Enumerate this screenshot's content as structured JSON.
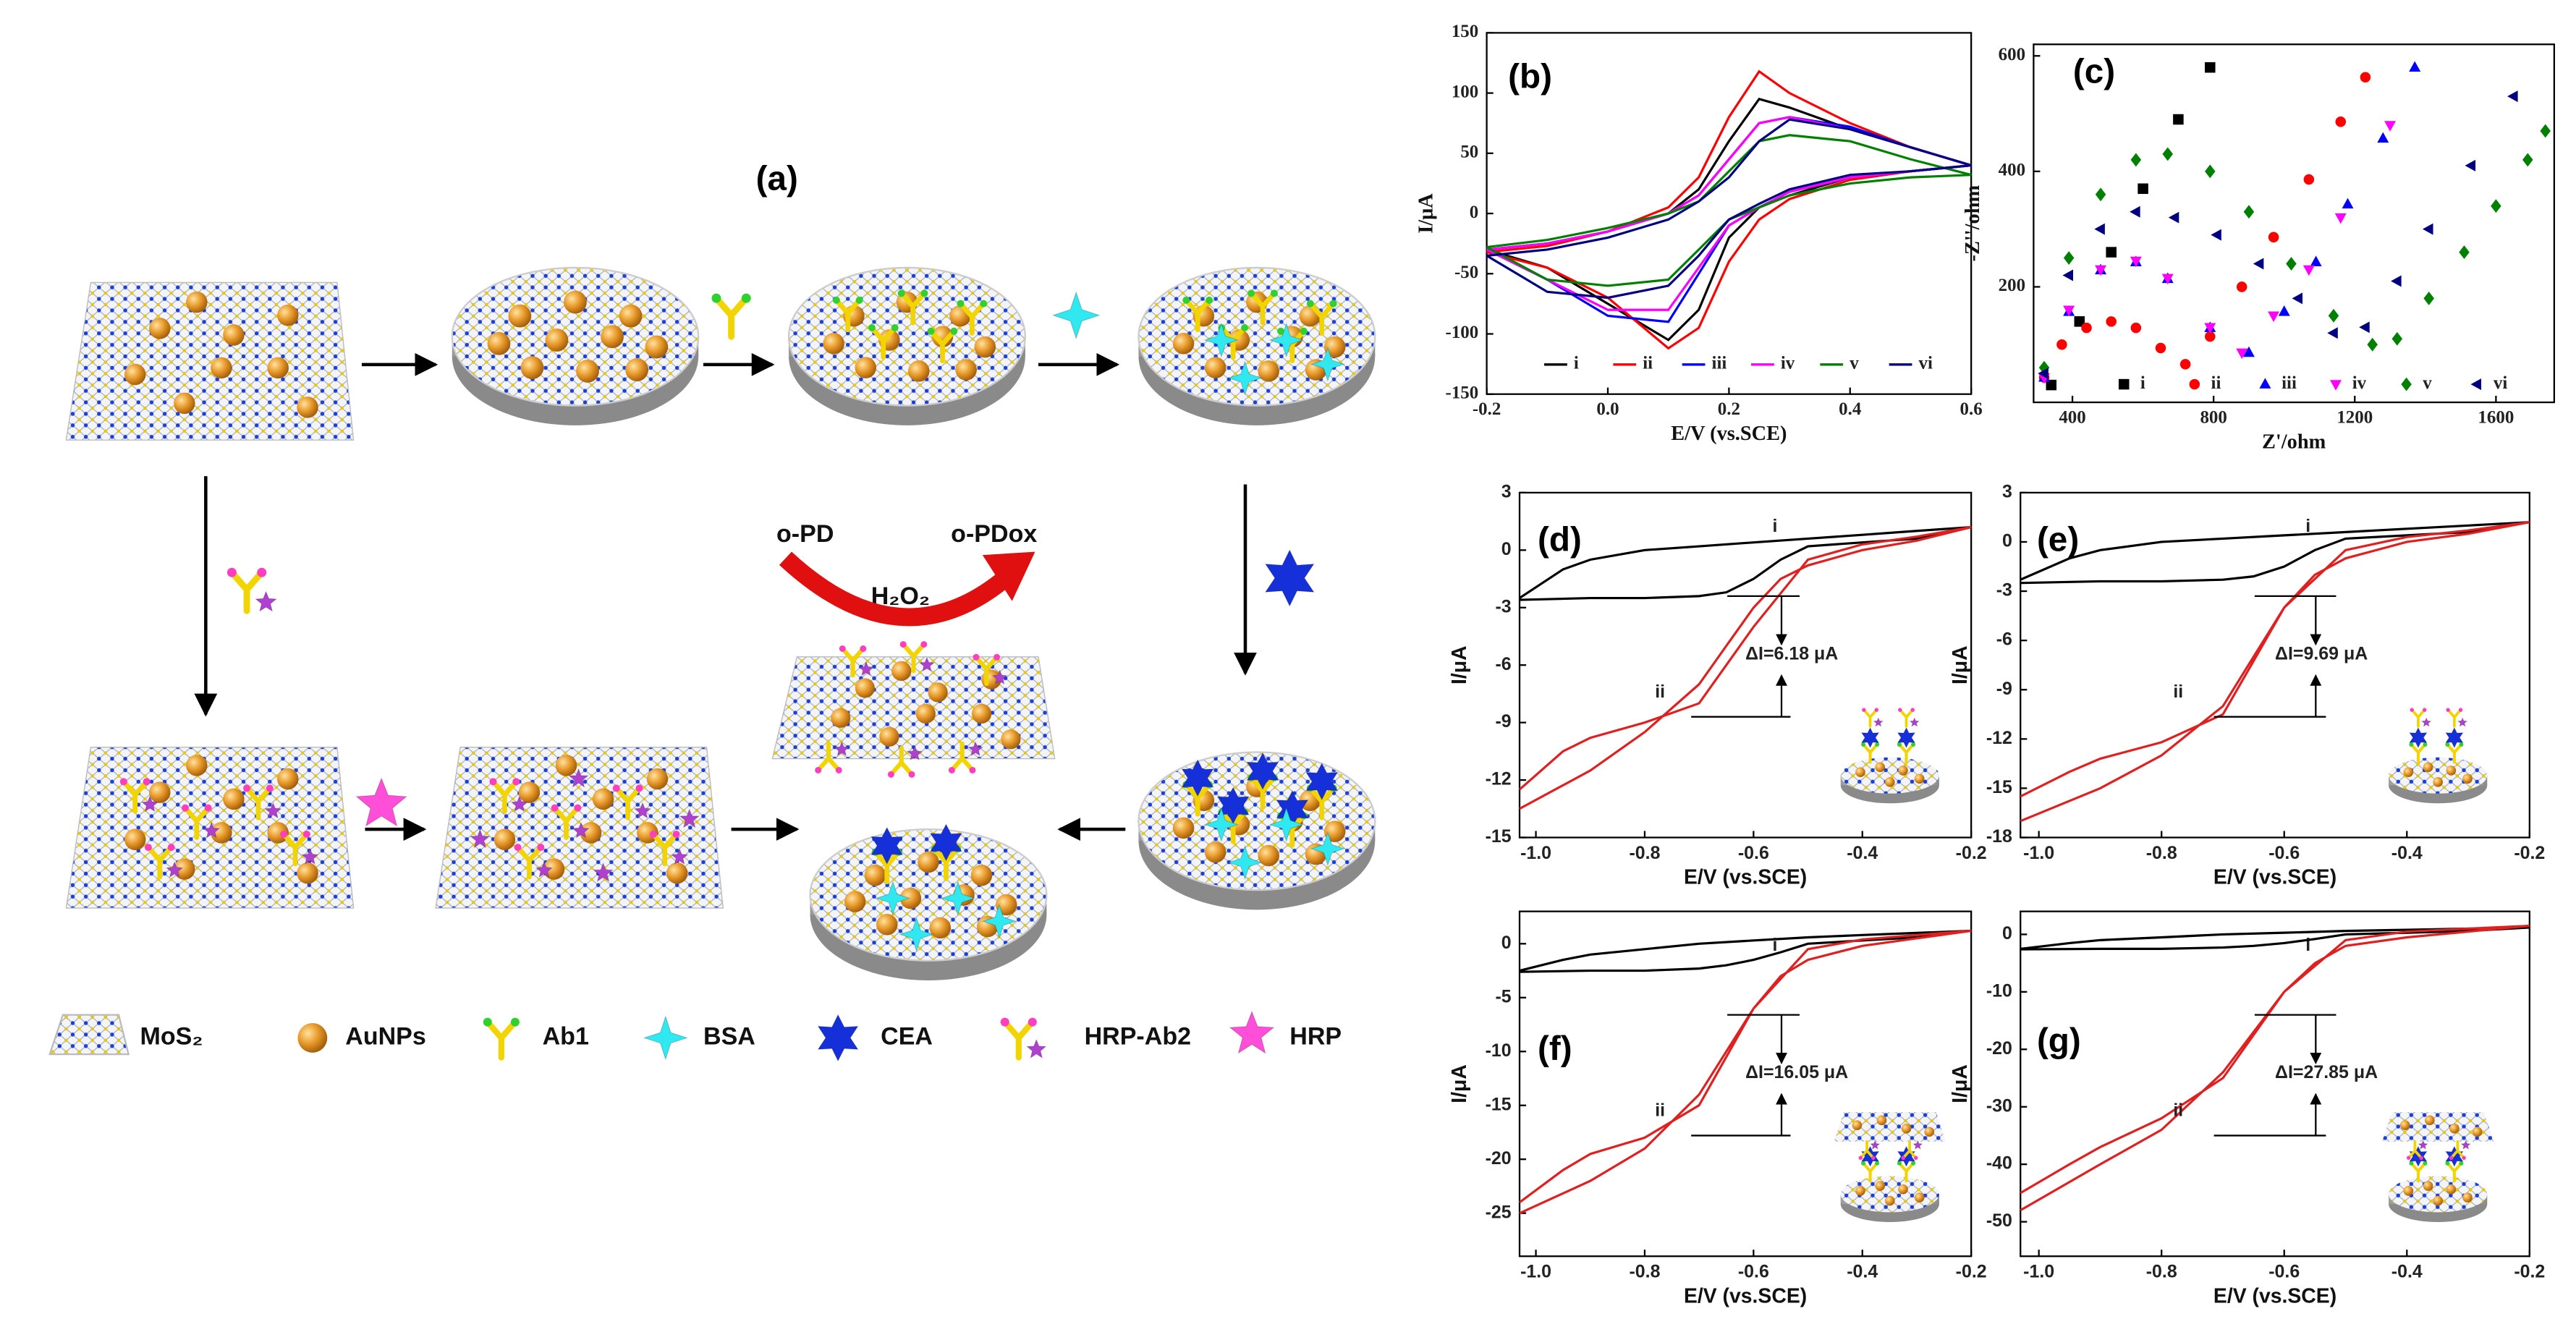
{
  "panel_a": {
    "label": "(a)",
    "reagents": {
      "substrate": "o-PD",
      "product": "o-PDox",
      "oxidant": "H₂O₂"
    },
    "legend": [
      "MoS₂",
      "AuNPs",
      "Ab1",
      "BSA",
      "CEA",
      "HRP-Ab2",
      "HRP"
    ]
  },
  "chart_data": [
    {
      "type": "line",
      "label": "(b)",
      "x_label": "E/V (vs.SCE)",
      "y_label": "I/μA",
      "xlim": [
        -0.2,
        0.6
      ],
      "ylim": [
        -150,
        150
      ],
      "xticks": [
        -0.2,
        {
          "value": 0,
          "label": "0.0"
        },
        0.2,
        0.4,
        0.6
      ],
      "yticks": [
        -150,
        -100,
        -50,
        0,
        50,
        100,
        150
      ],
      "x": [
        -0.2,
        -0.1,
        0,
        0.1,
        0.15,
        0.2,
        0.25,
        0.3,
        0.4,
        0.5,
        0.6,
        0.5,
        0.4,
        0.3,
        0.25,
        0.2,
        0.15,
        0.1,
        0,
        -0.1,
        -0.2
      ],
      "series": [
        {
          "name": "i",
          "color": "#000000",
          "values": [
            -30,
            -25,
            -15,
            0,
            20,
            60,
            95,
            88,
            70,
            55,
            40,
            35,
            30,
            15,
            5,
            -20,
            -80,
            -105,
            -75,
            -45,
            -30
          ]
        },
        {
          "name": "ii",
          "color": "#ff0000",
          "values": [
            -32,
            -27,
            -15,
            5,
            30,
            80,
            118,
            100,
            75,
            55,
            40,
            35,
            28,
            12,
            -5,
            -40,
            -95,
            -112,
            -70,
            -45,
            -32
          ]
        },
        {
          "name": "iii",
          "color": "#0000ff",
          "values": [
            -30,
            -25,
            -15,
            0,
            15,
            45,
            75,
            80,
            72,
            55,
            40,
            35,
            30,
            18,
            5,
            -10,
            -50,
            -90,
            -85,
            -55,
            -30
          ]
        },
        {
          "name": "iv",
          "color": "#ff00ff",
          "values": [
            -30,
            -25,
            -15,
            0,
            15,
            45,
            75,
            80,
            70,
            55,
            40,
            35,
            30,
            18,
            5,
            -10,
            -45,
            -80,
            -80,
            -55,
            -30
          ]
        },
        {
          "name": "v",
          "color": "#008000",
          "values": [
            -28,
            -22,
            -12,
            0,
            10,
            35,
            60,
            65,
            60,
            45,
            32,
            30,
            25,
            15,
            5,
            -5,
            -30,
            -55,
            -60,
            -55,
            -28
          ]
        },
        {
          "name": "vi",
          "color": "#000080",
          "values": [
            -35,
            -30,
            -20,
            -5,
            10,
            30,
            60,
            78,
            70,
            55,
            40,
            35,
            32,
            20,
            8,
            -5,
            -35,
            -60,
            -70,
            -65,
            -35
          ]
        }
      ]
    },
    {
      "type": "scatter",
      "label": "(c)",
      "x_label": "Z'/ohm",
      "y_label": "-Z''/ohm",
      "xlim": [
        290,
        1765
      ],
      "ylim": [
        0,
        620
      ],
      "xticks": [
        400,
        800,
        1200,
        1600
      ],
      "yticks": [
        200,
        400,
        600
      ],
      "series": [
        {
          "name": "i",
          "color": "#000000",
          "marker": "square",
          "x": [
            340,
            420,
            510,
            600,
            700,
            790
          ],
          "values": [
            30,
            140,
            260,
            370,
            490,
            580
          ]
        },
        {
          "name": "ii",
          "color": "#ff0000",
          "marker": "circle",
          "x": [
            320,
            370,
            440,
            510,
            580,
            650,
            720,
            790,
            880,
            970,
            1070,
            1160,
            1230
          ],
          "values": [
            43,
            100,
            129,
            140,
            129,
            94,
            66,
            114,
            200,
            286,
            386,
            486,
            563
          ]
        },
        {
          "name": "iii",
          "color": "#0000ff",
          "marker": "triangle-up",
          "x": [
            320,
            390,
            480,
            580,
            670,
            790,
            900,
            1000,
            1090,
            1180,
            1280,
            1370
          ],
          "values": [
            43,
            157,
            229,
            243,
            214,
            129,
            86,
            157,
            243,
            343,
            457,
            580
          ]
        },
        {
          "name": "iv",
          "color": "#ff00ff",
          "marker": "triangle-down",
          "x": [
            320,
            390,
            480,
            580,
            670,
            790,
            880,
            970,
            1070,
            1160,
            1300
          ],
          "values": [
            43,
            160,
            230,
            245,
            215,
            130,
            86,
            150,
            230,
            320,
            480
          ]
        },
        {
          "name": "v",
          "color": "#008000",
          "marker": "diamond",
          "x": [
            320,
            390,
            480,
            580,
            670,
            790,
            900,
            1020,
            1140,
            1250,
            1320,
            1410,
            1510,
            1600,
            1690,
            1740
          ],
          "values": [
            60,
            250,
            360,
            420,
            430,
            400,
            330,
            240,
            150,
            100,
            110,
            180,
            260,
            340,
            420,
            470
          ]
        },
        {
          "name": "vi",
          "color": "#000080",
          "marker": "triangle-left",
          "x": [
            320,
            390,
            480,
            580,
            690,
            810,
            930,
            1040,
            1140,
            1230,
            1320,
            1410,
            1530,
            1650
          ],
          "values": [
            50,
            220,
            300,
            330,
            320,
            290,
            240,
            180,
            120,
            130,
            210,
            300,
            410,
            530
          ]
        }
      ]
    },
    {
      "type": "line",
      "label": "(d)",
      "x_label": "E/V (vs.SCE)",
      "y_label": "I/μA",
      "annotation": "ΔI=6.18 μA",
      "xlim": [
        -1.03,
        -0.2
      ],
      "ylim": [
        -15,
        3
      ],
      "xticks": [
        {
          "value": -1,
          "label": "-1.0"
        },
        -0.8,
        -0.6,
        -0.4,
        -0.2
      ],
      "yticks": [
        -15,
        -12,
        -9,
        -6,
        -3,
        0,
        3
      ],
      "x": [
        -1.03,
        -0.95,
        -0.9,
        -0.8,
        -0.7,
        -0.6,
        -0.5,
        -0.4,
        -0.3,
        -0.2,
        -0.3,
        -0.4,
        -0.5,
        -0.55,
        -0.6,
        -0.65,
        -0.7,
        -0.8,
        -0.9,
        -1.03
      ],
      "series": [
        {
          "name": "i",
          "color": "#000000",
          "values": [
            -2.5,
            -1,
            -0.5,
            0,
            0.2,
            0.4,
            0.6,
            0.8,
            1,
            1.2,
            0.6,
            0.4,
            0.2,
            -0.5,
            -1.5,
            -2.2,
            -2.4,
            -2.5,
            -2.5,
            -2.6
          ]
        },
        {
          "name": "ii",
          "color": "#e02020",
          "values": [
            -12.5,
            -10.5,
            -9.8,
            -9,
            -8,
            -4,
            -0.5,
            0.3,
            0.7,
            1.2,
            0.5,
            0,
            -0.8,
            -1.5,
            -3,
            -5,
            -7,
            -9.5,
            -11.5,
            -13.5
          ]
        }
      ]
    },
    {
      "type": "line",
      "label": "(e)",
      "x_label": "E/V (vs.SCE)",
      "y_label": "I/μA",
      "annotation": "ΔI=9.69 μA",
      "xlim": [
        -1.03,
        -0.2
      ],
      "ylim": [
        -18,
        3
      ],
      "xticks": [
        {
          "value": -1,
          "label": "-1.0"
        },
        -0.8,
        -0.6,
        -0.4,
        -0.2
      ],
      "yticks": [
        -18,
        -15,
        -12,
        -9,
        -6,
        -3,
        0,
        3
      ],
      "x": [
        -1.03,
        -0.95,
        -0.9,
        -0.8,
        -0.7,
        -0.6,
        -0.5,
        -0.4,
        -0.3,
        -0.2,
        -0.3,
        -0.4,
        -0.5,
        -0.55,
        -0.6,
        -0.65,
        -0.7,
        -0.8,
        -0.9,
        -1.03
      ],
      "series": [
        {
          "name": "i",
          "color": "#000000",
          "values": [
            -2.3,
            -1,
            -0.5,
            0,
            0.2,
            0.4,
            0.6,
            0.8,
            1,
            1.2,
            0.6,
            0.4,
            0.2,
            -0.5,
            -1.5,
            -2.1,
            -2.3,
            -2.4,
            -2.4,
            -2.5
          ]
        },
        {
          "name": "ii",
          "color": "#e02020",
          "values": [
            -15.5,
            -14,
            -13.2,
            -12.2,
            -10.5,
            -4,
            -0.5,
            0.3,
            0.7,
            1.2,
            0.5,
            0,
            -1,
            -2,
            -4,
            -7,
            -10,
            -13,
            -15,
            -17
          ]
        }
      ]
    },
    {
      "type": "line",
      "label": "(f)",
      "x_label": "E/V (vs.SCE)",
      "y_label": "I/μA",
      "annotation": "ΔI=16.05 μA",
      "xlim": [
        -1.03,
        -0.2
      ],
      "ylim": [
        -29,
        3
      ],
      "xticks": [
        {
          "value": -1,
          "label": "-1.0"
        },
        -0.8,
        -0.6,
        -0.4,
        -0.2
      ],
      "yticks": [
        -25,
        -20,
        -15,
        -10,
        -5,
        0
      ],
      "x": [
        -1.03,
        -0.95,
        -0.9,
        -0.8,
        -0.7,
        -0.6,
        -0.5,
        -0.4,
        -0.3,
        -0.2,
        -0.3,
        -0.4,
        -0.5,
        -0.55,
        -0.6,
        -0.65,
        -0.7,
        -0.8,
        -0.9,
        -1.03
      ],
      "series": [
        {
          "name": "i",
          "color": "#000000",
          "values": [
            -2.5,
            -1.5,
            -1,
            -0.5,
            0,
            0.3,
            0.6,
            0.8,
            1,
            1.2,
            0.6,
            0.3,
            0,
            -0.8,
            -1.5,
            -2,
            -2.3,
            -2.5,
            -2.5,
            -2.6
          ]
        },
        {
          "name": "ii",
          "color": "#e02020",
          "values": [
            -24,
            -21,
            -19.5,
            -18,
            -15,
            -6,
            -0.5,
            0.4,
            0.8,
            1.2,
            0.5,
            -0.2,
            -1.5,
            -3,
            -6,
            -10,
            -14,
            -19,
            -22,
            -25
          ]
        }
      ]
    },
    {
      "type": "line",
      "label": "(g)",
      "x_label": "E/V (vs.SCE)",
      "y_label": "I/μA",
      "annotation": "ΔI=27.85 μA",
      "xlim": [
        -1.03,
        -0.2
      ],
      "ylim": [
        -56,
        4
      ],
      "xticks": [
        {
          "value": -1,
          "label": "-1.0"
        },
        -0.8,
        -0.6,
        -0.4,
        -0.2
      ],
      "yticks": [
        -50,
        -40,
        -30,
        -20,
        -10,
        0
      ],
      "x": [
        -1.03,
        -0.95,
        -0.9,
        -0.8,
        -0.7,
        -0.6,
        -0.5,
        -0.4,
        -0.3,
        -0.2,
        -0.3,
        -0.4,
        -0.5,
        -0.55,
        -0.6,
        -0.65,
        -0.7,
        -0.8,
        -0.9,
        -1.03
      ],
      "series": [
        {
          "name": "i",
          "color": "#000000",
          "values": [
            -2.5,
            -1.5,
            -1,
            -0.5,
            0,
            0.3,
            0.6,
            0.8,
            1,
            1.2,
            0.6,
            0.3,
            0,
            -0.8,
            -1.5,
            -2,
            -2.3,
            -2.5,
            -2.5,
            -2.6
          ]
        },
        {
          "name": "ii",
          "color": "#e02020",
          "values": [
            -45,
            -40,
            -37,
            -32,
            -25,
            -10,
            -1,
            0.5,
            1,
            1.5,
            0.5,
            -0.5,
            -2,
            -5,
            -10,
            -17,
            -24,
            -34,
            -40,
            -48
          ]
        }
      ]
    }
  ]
}
